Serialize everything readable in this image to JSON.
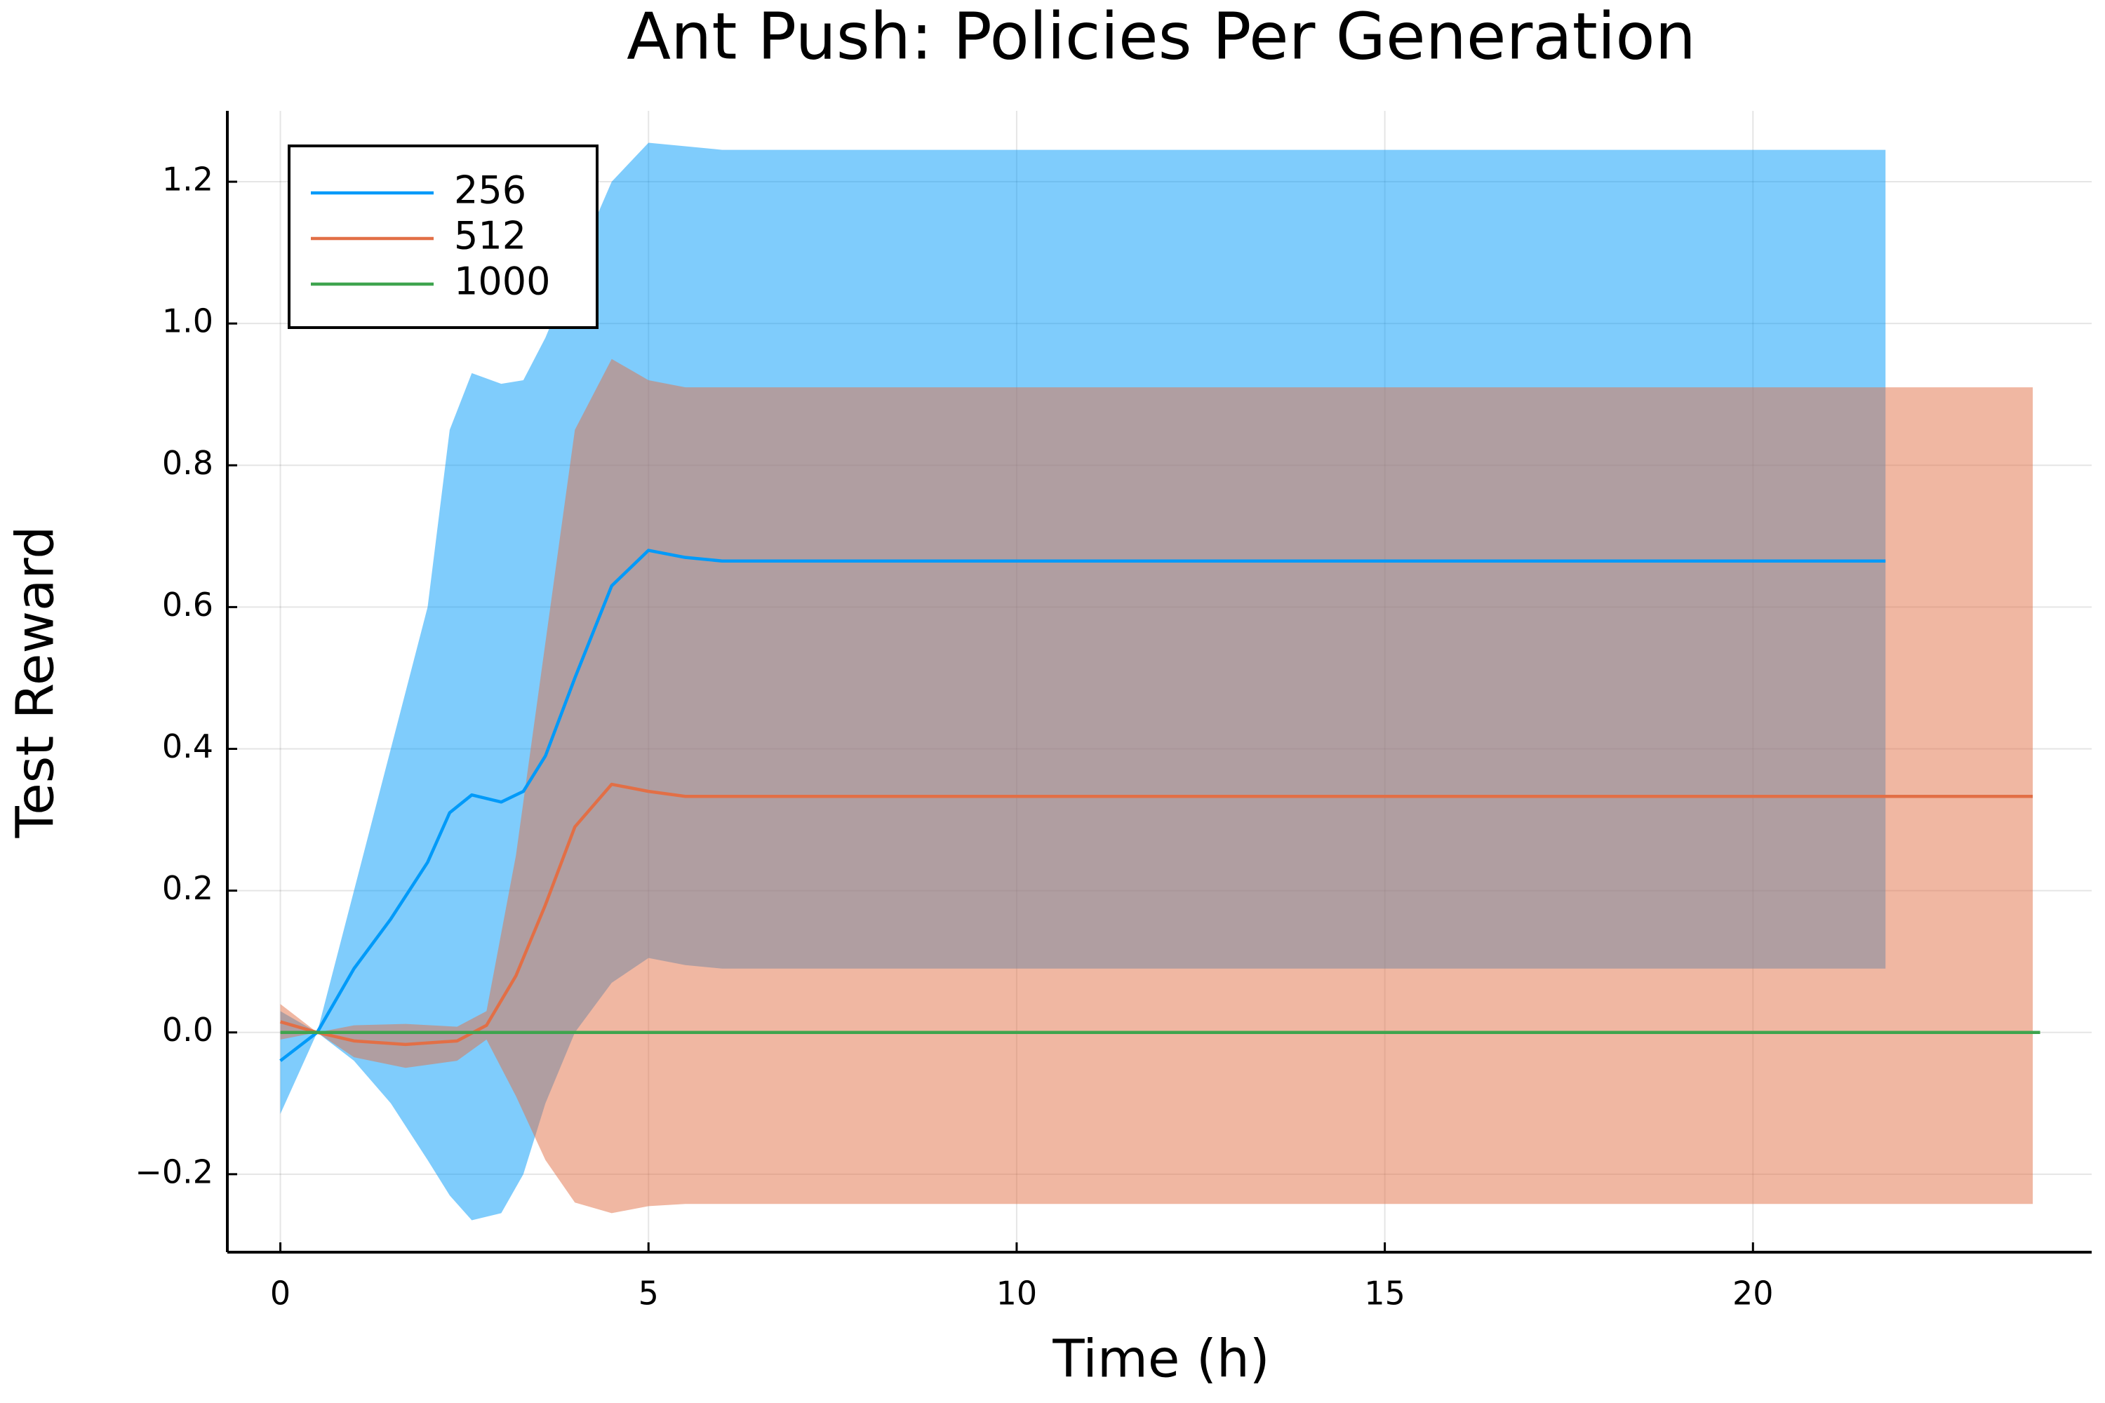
{
  "chart_data": {
    "type": "line",
    "title": "Ant Push: Policies Per Generation",
    "xlabel": "Time (h)",
    "ylabel": "Test Reward",
    "xlim": [
      -0.72,
      24.6
    ],
    "ylim": [
      -0.31,
      1.3
    ],
    "xticks": [
      0,
      5,
      10,
      15,
      20
    ],
    "yticks": [
      {
        "value": -0.2,
        "label": "−0.2"
      },
      {
        "value": 0,
        "label": "0.0"
      },
      0.2,
      0.4,
      0.6,
      0.8,
      {
        "value": 1,
        "label": "1.0"
      },
      1.2
    ],
    "grid": true,
    "legend": "top-left",
    "band_opacity": 0.5,
    "series": [
      {
        "name": "256",
        "color": "#009af9",
        "x": [
          0,
          0.5,
          1,
          1.5,
          2,
          2.3,
          2.6,
          3.0,
          3.3,
          3.6,
          4.0,
          4.5,
          5.0,
          5.5,
          6,
          21.8
        ],
        "values": [
          -0.04,
          0,
          0.09,
          0.16,
          0.24,
          0.31,
          0.335,
          0.325,
          0.34,
          0.39,
          0.5,
          0.63,
          0.68,
          0.67,
          0.665,
          0.665
        ],
        "upper": [
          0.03,
          0,
          0.2,
          0.4,
          0.6,
          0.85,
          0.93,
          0.915,
          0.92,
          0.98,
          1.08,
          1.2,
          1.255,
          1.25,
          1.245,
          1.245
        ],
        "lower": [
          -0.115,
          0,
          -0.04,
          -0.1,
          -0.18,
          -0.23,
          -0.265,
          -0.255,
          -0.2,
          -0.1,
          0.0,
          0.07,
          0.105,
          0.095,
          0.09,
          0.09
        ]
      },
      {
        "name": "512",
        "color": "#e26f46",
        "x": [
          0,
          0.5,
          1,
          1.7,
          2.4,
          2.8,
          3.2,
          3.6,
          4.0,
          4.5,
          5.0,
          5.5,
          23.8
        ],
        "values": [
          0.015,
          0,
          -0.012,
          -0.017,
          -0.012,
          0.01,
          0.08,
          0.18,
          0.29,
          0.35,
          0.34,
          0.333,
          0.333
        ],
        "upper": [
          0.04,
          0,
          0.01,
          0.012,
          0.008,
          0.03,
          0.25,
          0.55,
          0.85,
          0.95,
          0.92,
          0.91,
          0.91
        ],
        "lower": [
          -0.01,
          0,
          -0.035,
          -0.05,
          -0.04,
          -0.01,
          -0.09,
          -0.18,
          -0.24,
          -0.255,
          -0.245,
          -0.242,
          -0.242
        ]
      },
      {
        "name": "1000",
        "color": "#3ea44e",
        "x": [
          0,
          23.9
        ],
        "values": [
          0,
          0
        ]
      }
    ]
  }
}
